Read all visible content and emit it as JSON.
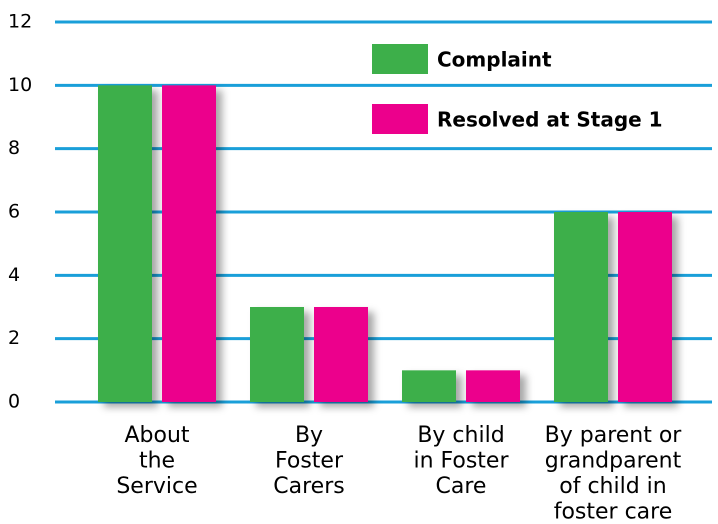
{
  "chart_data": {
    "type": "bar",
    "categories": [
      [
        "About",
        "the",
        "Service"
      ],
      [
        "By",
        "Foster",
        "Carers"
      ],
      [
        "By child",
        "in Foster",
        "Care"
      ],
      [
        "By parent or",
        "grandparent",
        "of child in",
        "foster care"
      ]
    ],
    "series": [
      {
        "name": "Complaint",
        "color": "#3daf4a",
        "values": [
          10,
          3,
          1,
          6
        ]
      },
      {
        "name": "Resolved at Stage 1",
        "color": "#ec008c",
        "values": [
          10,
          3,
          1,
          6
        ]
      }
    ],
    "ylim": [
      0,
      12
    ],
    "yticks": [
      0,
      2,
      4,
      6,
      8,
      10,
      12
    ],
    "grid": true,
    "grid_color": "#1a9fd9",
    "legend": "top-right"
  }
}
